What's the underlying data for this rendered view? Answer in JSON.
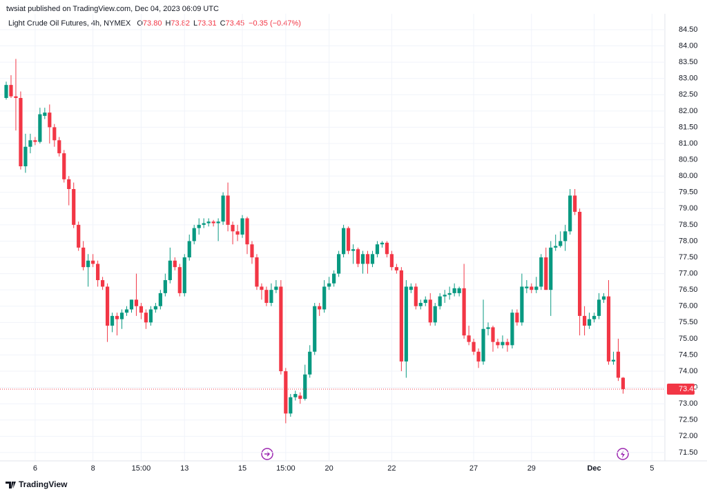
{
  "header": {
    "publisher": "twsiat published on TradingView.com, Dec 04, 2023 06:09 UTC",
    "brand": "TradingView"
  },
  "chart_data": {
    "type": "candlestick",
    "title": "Light Crude Oil Futures, 4h, NYMEX",
    "ohlc_legend": [
      {
        "label": "O",
        "value": "73.80"
      },
      {
        "label": "H",
        "value": "73.82"
      },
      {
        "label": "L",
        "value": "73.31"
      },
      {
        "label": "C",
        "value": "73.45"
      }
    ],
    "change": "−0.35 (−0.47%)",
    "up_color": "#089981",
    "down_color": "#f23645",
    "grid": true,
    "categories": [
      null,
      null,
      null,
      null,
      null,
      null,
      "6",
      null,
      null,
      null,
      null,
      null,
      null,
      null,
      null,
      null,
      null,
      null,
      "8",
      null,
      null,
      null,
      null,
      null,
      null,
      null,
      null,
      null,
      "15:00",
      null,
      null,
      null,
      null,
      null,
      null,
      null,
      null,
      "13",
      null,
      null,
      null,
      null,
      null,
      null,
      null,
      null,
      null,
      null,
      null,
      "15",
      null,
      null,
      null,
      null,
      null,
      null,
      null,
      null,
      "15:00",
      null,
      null,
      null,
      null,
      null,
      null,
      null,
      null,
      "20",
      null,
      null,
      null,
      null,
      null,
      null,
      null,
      null,
      null,
      null,
      null,
      null,
      "22",
      null,
      null,
      null,
      null,
      null,
      null,
      null,
      null,
      null,
      null,
      null,
      null,
      null,
      null,
      null,
      null,
      "27",
      null,
      null,
      null,
      null,
      null,
      null,
      null,
      null,
      null,
      null,
      null,
      "29",
      null,
      null,
      null,
      null,
      null,
      null,
      null,
      null,
      null,
      null,
      null,
      null,
      "Dec",
      null,
      null,
      null,
      null,
      null,
      null,
      null,
      null,
      null,
      null,
      null,
      "5",
      null,
      null
    ],
    "open": [
      82.4,
      82.8,
      82.45,
      82.4,
      80.3,
      80.9,
      81.1,
      81.05,
      81.85,
      81.95,
      81.5,
      81.1,
      80.7,
      79.9,
      79.6,
      78.5,
      77.8,
      77.2,
      77.4,
      77.3,
      76.8,
      76.6,
      75.4,
      75.7,
      75.6,
      75.8,
      75.9,
      76.2,
      76.0,
      75.8,
      75.5,
      75.9,
      76.0,
      76.4,
      76.8,
      77.4,
      77.2,
      76.4,
      77.5,
      78.0,
      78.4,
      78.5,
      78.55,
      78.6,
      78.55,
      78.6,
      79.4,
      78.5,
      78.3,
      78.2,
      78.7,
      77.9,
      77.5,
      76.6,
      76.5,
      76.1,
      76.5,
      76.6,
      74.0,
      72.7,
      73.2,
      73.25,
      73.15,
      73.9,
      74.6,
      76.0,
      75.9,
      76.6,
      76.7,
      77.0,
      77.6,
      78.4,
      77.7,
      77.75,
      77.3,
      77.6,
      77.3,
      77.6,
      77.9,
      77.95,
      77.6,
      77.2,
      77.1,
      74.3,
      76.5,
      76.6,
      76.0,
      76.1,
      76.2,
      75.5,
      76.0,
      76.3,
      76.35,
      76.4,
      76.4,
      76.55,
      75.1,
      74.9,
      74.6,
      74.3,
      75.3,
      75.35,
      74.9,
      74.8,
      74.9,
      74.8,
      75.8,
      75.5,
      76.55,
      76.6,
      76.5,
      76.6,
      77.5,
      76.5,
      77.8,
      77.85,
      78.0,
      78.3,
      79.4,
      78.9,
      75.7,
      75.4,
      75.6,
      75.7,
      76.2,
      76.3,
      74.3,
      74.6,
      73.8,
      null,
      null,
      null,
      null,
      null,
      null,
      null,
      null
    ],
    "high": [
      82.9,
      83.1,
      83.6,
      82.6,
      81.3,
      81.3,
      81.2,
      82.1,
      82.1,
      82.2,
      81.6,
      81.2,
      80.8,
      80.0,
      79.8,
      78.6,
      78.0,
      77.6,
      77.6,
      77.4,
      76.9,
      76.7,
      75.8,
      75.8,
      75.9,
      76.0,
      76.2,
      77.0,
      76.1,
      75.9,
      76.0,
      76.1,
      76.5,
      77.0,
      77.8,
      77.5,
      77.3,
      77.6,
      78.2,
      78.5,
      78.7,
      78.7,
      78.7,
      78.65,
      78.7,
      79.5,
      79.8,
      78.6,
      78.5,
      78.8,
      78.75,
      78.0,
      77.6,
      76.7,
      76.6,
      76.7,
      76.8,
      76.8,
      74.1,
      73.3,
      73.4,
      73.35,
      74.2,
      74.8,
      76.1,
      76.1,
      76.8,
      76.9,
      77.1,
      77.7,
      78.5,
      78.45,
      77.9,
      77.8,
      77.7,
      77.7,
      77.7,
      78.0,
      78.0,
      78.0,
      77.7,
      77.3,
      77.2,
      76.8,
      76.7,
      76.7,
      76.2,
      76.3,
      76.4,
      76.1,
      76.4,
      76.5,
      76.6,
      76.7,
      76.6,
      77.3,
      75.4,
      75.0,
      74.7,
      76.2,
      75.5,
      75.4,
      75.0,
      75.1,
      75.0,
      75.9,
      75.9,
      77.0,
      76.8,
      76.7,
      76.9,
      77.6,
      77.8,
      78.0,
      78.2,
      78.3,
      78.5,
      79.6,
      79.6,
      79.0,
      76.0,
      75.8,
      75.8,
      76.4,
      76.4,
      76.8,
      74.6,
      75.0,
      73.82,
      null,
      null,
      null,
      null,
      null,
      null,
      null,
      null
    ],
    "low": [
      82.35,
      82.4,
      81.4,
      80.2,
      80.1,
      80.7,
      80.95,
      81.0,
      81.75,
      81.0,
      80.9,
      80.6,
      79.8,
      79.1,
      78.4,
      77.7,
      77.1,
      76.6,
      77.2,
      76.6,
      76.5,
      74.9,
      75.2,
      75.1,
      75.3,
      75.7,
      75.8,
      75.7,
      75.6,
      75.3,
      75.4,
      75.8,
      75.9,
      76.3,
      76.7,
      77.1,
      76.3,
      76.3,
      77.4,
      77.9,
      78.2,
      78.4,
      78.45,
      78.45,
      78.0,
      78.5,
      78.3,
      77.9,
      78.0,
      78.1,
      77.6,
      77.3,
      76.5,
      76.2,
      76.0,
      76.0,
      76.4,
      73.9,
      72.4,
      72.6,
      73.1,
      73.0,
      73.1,
      73.8,
      74.5,
      75.7,
      75.8,
      76.5,
      76.6,
      76.9,
      77.5,
      77.6,
      77.3,
      77.2,
      77.0,
      77.0,
      77.2,
      77.5,
      77.8,
      77.5,
      77.1,
      77.0,
      74.0,
      73.8,
      76.4,
      75.9,
      75.9,
      76.0,
      75.4,
      75.4,
      75.9,
      76.1,
      76.2,
      76.3,
      76.3,
      75.0,
      74.8,
      74.5,
      74.1,
      74.2,
      75.1,
      74.6,
      74.7,
      74.7,
      74.6,
      74.7,
      75.4,
      75.4,
      76.4,
      76.4,
      76.4,
      76.5,
      76.5,
      75.7,
      77.7,
      77.8,
      77.7,
      78.2,
      78.8,
      75.1,
      75.1,
      75.3,
      75.5,
      75.6,
      76.1,
      74.2,
      74.2,
      73.7,
      73.31,
      null,
      null,
      null,
      null,
      null,
      null,
      null,
      null
    ],
    "close": [
      82.8,
      82.45,
      82.4,
      80.3,
      80.9,
      81.1,
      81.05,
      81.9,
      81.95,
      81.5,
      81.1,
      80.7,
      79.9,
      79.6,
      78.5,
      77.8,
      77.2,
      77.4,
      77.3,
      76.8,
      76.6,
      75.4,
      75.7,
      75.6,
      75.8,
      75.9,
      76.2,
      76.0,
      75.8,
      75.5,
      75.9,
      76.0,
      76.4,
      76.8,
      77.4,
      77.2,
      76.4,
      77.5,
      78.0,
      78.4,
      78.5,
      78.55,
      78.6,
      78.55,
      78.6,
      79.4,
      78.5,
      78.3,
      78.2,
      78.7,
      77.9,
      77.5,
      76.6,
      76.5,
      76.1,
      76.5,
      76.6,
      74.0,
      72.7,
      73.2,
      73.3,
      73.15,
      73.9,
      74.6,
      76.0,
      75.9,
      76.6,
      76.7,
      77.0,
      77.6,
      78.4,
      77.7,
      77.75,
      77.3,
      77.6,
      77.3,
      77.6,
      77.9,
      77.95,
      77.6,
      77.2,
      77.1,
      74.3,
      76.6,
      76.6,
      76.0,
      76.1,
      76.2,
      75.5,
      76.0,
      76.3,
      76.35,
      76.4,
      76.55,
      76.55,
      75.1,
      74.9,
      74.6,
      74.3,
      75.3,
      75.35,
      74.9,
      74.8,
      74.9,
      74.8,
      75.8,
      75.5,
      76.6,
      76.6,
      76.5,
      76.6,
      77.5,
      76.5,
      77.8,
      77.85,
      78.0,
      78.3,
      79.4,
      78.9,
      75.7,
      75.4,
      75.6,
      75.7,
      76.2,
      76.3,
      74.3,
      74.35,
      73.8,
      73.45,
      null,
      null,
      null,
      null,
      null,
      null,
      null,
      null
    ],
    "last_price": {
      "value": 73.45,
      "label": "73.45"
    },
    "ylim": [
      71.25,
      85
    ],
    "yticks": [
      {
        "value": 71.5,
        "label": "71.50"
      },
      {
        "value": 72,
        "label": "72.00"
      },
      {
        "value": 72.5,
        "label": "72.50"
      },
      {
        "value": 73,
        "label": "73.00"
      },
      {
        "value": 73.5,
        "label": "73.50"
      },
      {
        "value": 74,
        "label": "74.00"
      },
      {
        "value": 74.5,
        "label": "74.50"
      },
      {
        "value": 75,
        "label": "75.00"
      },
      {
        "value": 75.5,
        "label": "75.50"
      },
      {
        "value": 76,
        "label": "76.00"
      },
      {
        "value": 76.5,
        "label": "76.50"
      },
      {
        "value": 77,
        "label": "77.00"
      },
      {
        "value": 77.5,
        "label": "77.50"
      },
      {
        "value": 78,
        "label": "78.00"
      },
      {
        "value": 78.5,
        "label": "78.50"
      },
      {
        "value": 79,
        "label": "79.00"
      },
      {
        "value": 79.5,
        "label": "79.50"
      },
      {
        "value": 80,
        "label": "80.00"
      },
      {
        "value": 80.5,
        "label": "80.50"
      },
      {
        "value": 81,
        "label": "81.00"
      },
      {
        "value": 81.5,
        "label": "81.50"
      },
      {
        "value": 82,
        "label": "82.00"
      },
      {
        "value": 82.5,
        "label": "82.50"
      },
      {
        "value": 83,
        "label": "83.00"
      },
      {
        "value": 83.5,
        "label": "83.50"
      },
      {
        "value": 84,
        "label": "84.00"
      },
      {
        "value": 84.5,
        "label": "84.50"
      }
    ]
  }
}
